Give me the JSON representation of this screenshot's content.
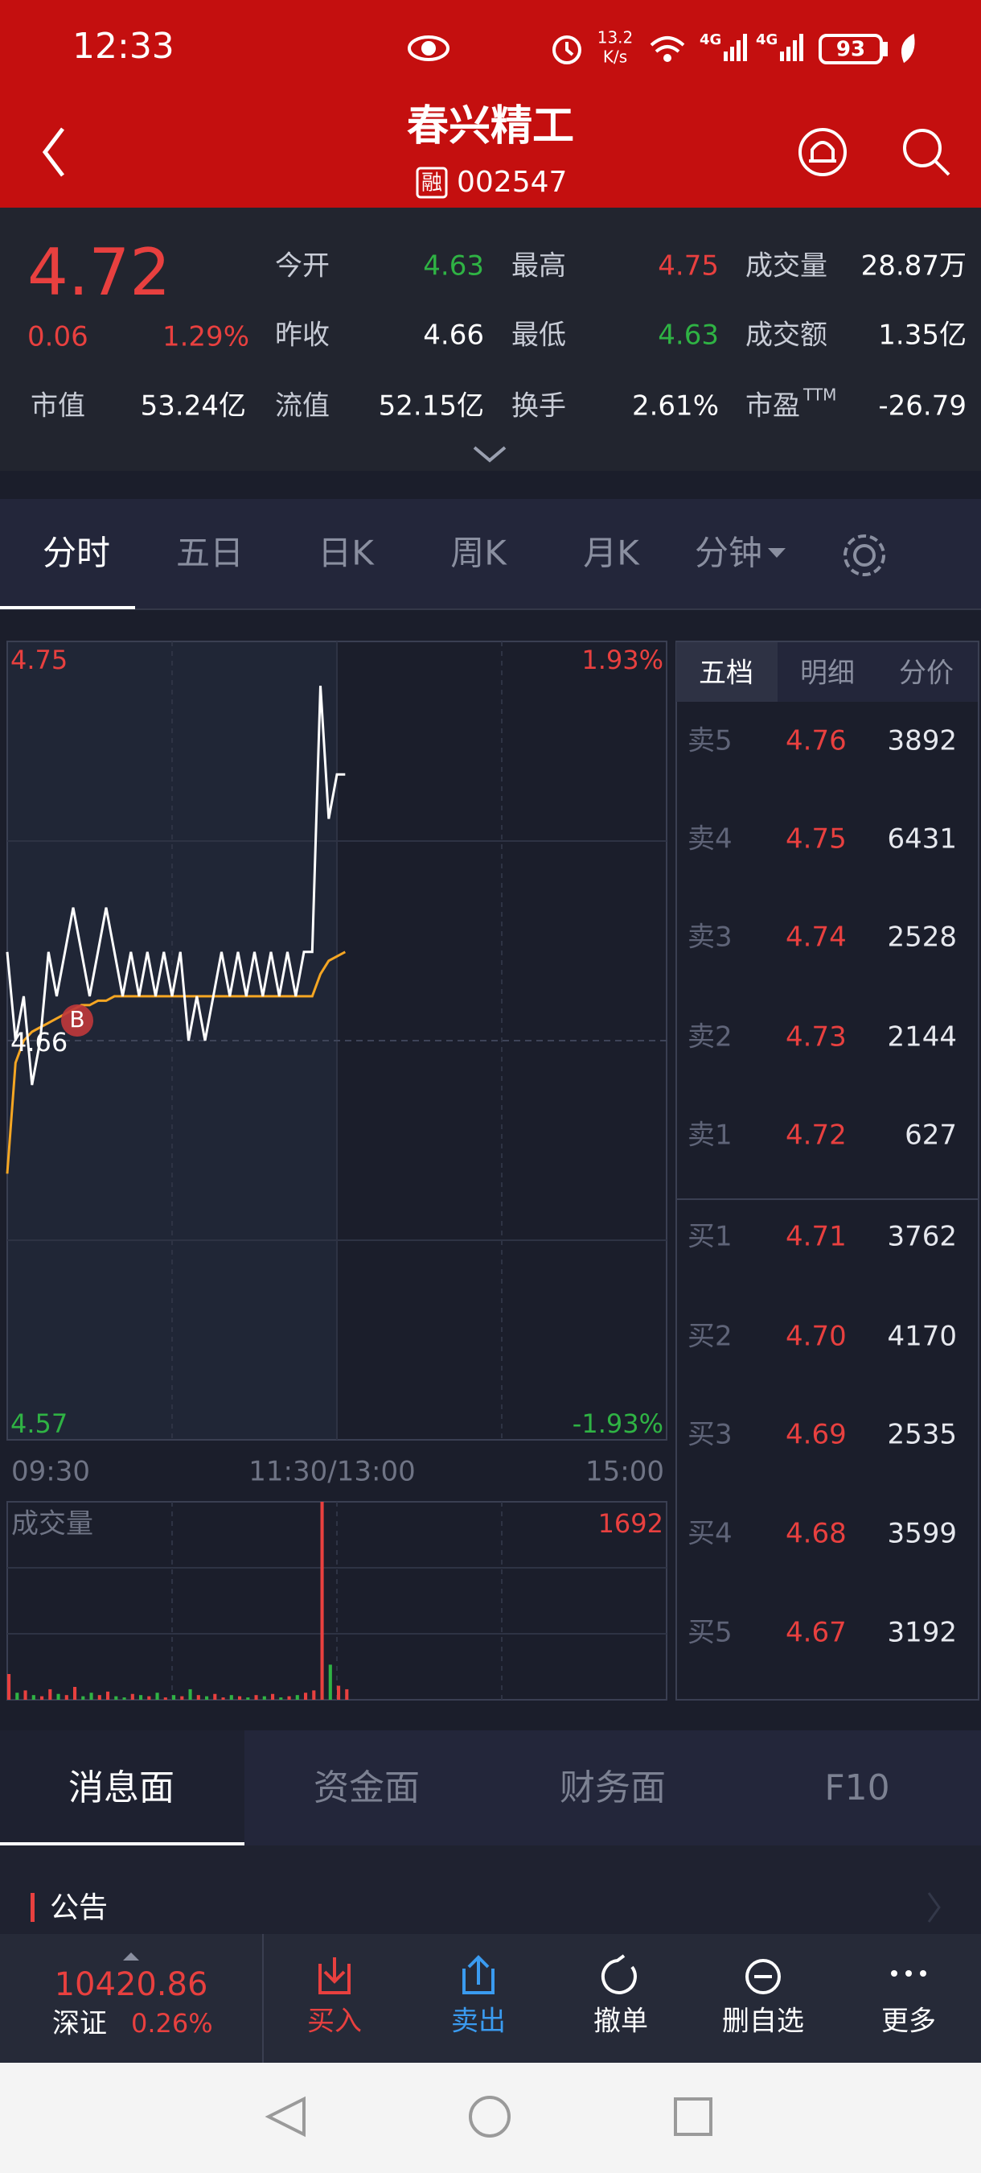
{
  "status_bar": {
    "time": "12:33",
    "speed": "13.2",
    "speed_unit": "K/s",
    "battery": "93"
  },
  "header": {
    "title": "春兴精工",
    "badge": "融",
    "code": "002547"
  },
  "quote": {
    "price": "4.72",
    "change": "0.06",
    "change_pct": "1.29%",
    "rows": [
      [
        {
          "label": "今开",
          "value": "4.63",
          "color": "green"
        },
        {
          "label": "最高",
          "value": "4.75",
          "color": "red"
        },
        {
          "label": "成交量",
          "value": "28.87万",
          "color": "white"
        }
      ],
      [
        {
          "label": "昨收",
          "value": "4.66",
          "color": "white"
        },
        {
          "label": "最低",
          "value": "4.63",
          "color": "green"
        },
        {
          "label": "成交额",
          "value": "1.35亿",
          "color": "white"
        }
      ],
      [
        {
          "label": "市值",
          "value": "53.24亿",
          "color": "white"
        },
        {
          "label": "流值",
          "value": "52.15亿",
          "color": "white"
        },
        {
          "label": "换手",
          "value": "2.61%",
          "color": "white"
        },
        {
          "label": "市盈",
          "sup": "TTM",
          "value": "-26.79",
          "color": "white"
        }
      ]
    ]
  },
  "chart_tabs": {
    "items": [
      "分时",
      "五日",
      "日K",
      "周K",
      "月K",
      "分钟"
    ],
    "active": 0
  },
  "intraday": {
    "type": "line",
    "ylim": [
      4.57,
      4.75
    ],
    "yticks": [
      4.75,
      4.57
    ],
    "prev_close": 4.66,
    "pct_labels": [
      "1.93%",
      "-1.93%"
    ],
    "price": [
      4.68,
      4.66,
      4.67,
      4.65,
      4.66,
      4.68,
      4.67,
      4.68,
      4.69,
      4.68,
      4.67,
      4.68,
      4.69,
      4.68,
      4.67,
      4.68,
      4.67,
      4.68,
      4.67,
      4.68,
      4.67,
      4.68,
      4.66,
      4.67,
      4.66,
      4.67,
      4.68,
      4.67,
      4.68,
      4.67,
      4.68,
      4.67,
      4.68,
      4.67,
      4.68,
      4.67,
      4.68,
      4.68,
      4.74,
      4.71,
      4.72,
      4.72
    ],
    "avg": [
      4.63,
      4.655,
      4.66,
      4.662,
      4.663,
      4.664,
      4.665,
      4.666,
      4.667,
      4.668,
      4.668,
      4.669,
      4.669,
      4.67,
      4.67,
      4.67,
      4.67,
      4.67,
      4.67,
      4.67,
      4.67,
      4.67,
      4.67,
      4.67,
      4.67,
      4.67,
      4.67,
      4.67,
      4.67,
      4.67,
      4.67,
      4.67,
      4.67,
      4.67,
      4.67,
      4.67,
      4.67,
      4.67,
      4.675,
      4.678,
      4.679,
      4.68
    ],
    "price_color": "#ffffff",
    "avg_color": "#f5a623",
    "buy_marker": "B",
    "x_labels": [
      "09:30",
      "11:30/13:00",
      "15:00"
    ],
    "volume_title": "成交量",
    "volume_max": 1692,
    "volume": [
      220,
      60,
      80,
      40,
      30,
      90,
      50,
      40,
      110,
      30,
      60,
      40,
      70,
      30,
      20,
      50,
      40,
      30,
      60,
      20,
      40,
      30,
      90,
      40,
      30,
      50,
      20,
      40,
      30,
      20,
      40,
      30,
      50,
      20,
      30,
      40,
      60,
      80,
      1692,
      300,
      120,
      90
    ],
    "up_color": "#e8403f",
    "down_color": "#2fb344"
  },
  "order_book": {
    "tabs": [
      "五档",
      "明细",
      "分价"
    ],
    "active": 0,
    "asks": [
      {
        "label": "卖5",
        "price": "4.76",
        "volume": 3892
      },
      {
        "label": "卖4",
        "price": "4.75",
        "volume": 6431
      },
      {
        "label": "卖3",
        "price": "4.74",
        "volume": 2528
      },
      {
        "label": "卖2",
        "price": "4.73",
        "volume": 2144
      },
      {
        "label": "卖1",
        "price": "4.72",
        "volume": 627
      }
    ],
    "bids": [
      {
        "label": "买1",
        "price": "4.71",
        "volume": 3762
      },
      {
        "label": "买2",
        "price": "4.70",
        "volume": 4170
      },
      {
        "label": "买3",
        "price": "4.69",
        "volume": 2535
      },
      {
        "label": "买4",
        "price": "4.68",
        "volume": 3599
      },
      {
        "label": "买5",
        "price": "4.67",
        "volume": 3192
      }
    ]
  },
  "info_tabs": {
    "items": [
      "消息面",
      "资金面",
      "财务面",
      "F10"
    ],
    "active": 0
  },
  "section": {
    "title": "公告"
  },
  "bottom_bar": {
    "index_value": "10420.86",
    "index_name": "深证",
    "index_pct": "0.26%",
    "actions": [
      "买入",
      "卖出",
      "撤单",
      "删自选",
      "更多"
    ]
  }
}
